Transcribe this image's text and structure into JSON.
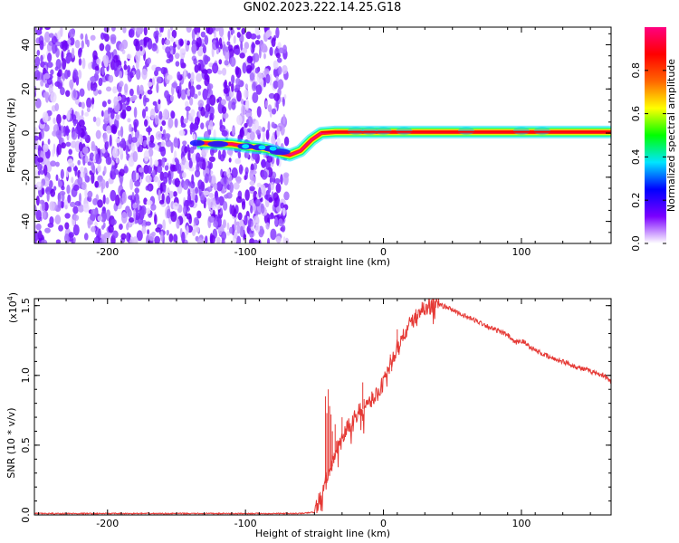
{
  "title": "GN02.2023.222.14.25.G18",
  "chart_data": [
    {
      "type": "heatmap",
      "xlabel": "Height of straight line (km)",
      "ylabel": "Frequency (Hz)",
      "xlim": [
        -253,
        165
      ],
      "ylim": [
        -50,
        48
      ],
      "xticks": [
        -200,
        -100,
        0,
        100
      ],
      "xtick_labels": [
        "-200",
        "-100",
        "0",
        "100"
      ],
      "yticks": [
        -40,
        -20,
        0,
        20,
        40
      ],
      "ytick_labels": [
        "-40",
        "-20",
        "0",
        "20",
        "40"
      ],
      "colorbar": {
        "label": "Normalized spectral amplitude",
        "range": [
          0.0,
          1.0
        ],
        "ticks": [
          0.0,
          0.2,
          0.4,
          0.6,
          0.8
        ],
        "tick_labels": [
          "0.0",
          "0.2",
          "0.4",
          "0.6",
          "0.8"
        ],
        "colors": [
          "#ffffff",
          "#7b00ff",
          "#0000ff",
          "#00e5ff",
          "#00ff00",
          "#ffff00",
          "#ff6600",
          "#ff0000",
          "#ff0080"
        ]
      },
      "noise_region_x": [
        -253,
        -70
      ],
      "ridge": [
        {
          "x": -135,
          "y": -4.5
        },
        {
          "x": -110,
          "y": -5
        },
        {
          "x": -100,
          "y": -6
        },
        {
          "x": -85,
          "y": -7
        },
        {
          "x": -75,
          "y": -9
        },
        {
          "x": -68,
          "y": -10
        },
        {
          "x": -60,
          "y": -8
        },
        {
          "x": -52,
          "y": -3
        },
        {
          "x": -45,
          "y": 0
        },
        {
          "x": -35,
          "y": 0.5
        },
        {
          "x": 0,
          "y": 0.5
        },
        {
          "x": 60,
          "y": 0.5
        },
        {
          "x": 100,
          "y": 0.5
        },
        {
          "x": 165,
          "y": 0.5
        }
      ],
      "grid": false
    },
    {
      "type": "line",
      "xlabel": "Height of straight line (km)",
      "ylabel": "SNR (10 * v/v)",
      "y_multiplier_label": "(x10",
      "y_multiplier_exp": "4",
      "xlim": [
        -253,
        165
      ],
      "ylim": [
        0,
        1.55
      ],
      "xticks": [
        -200,
        -100,
        0,
        100
      ],
      "xtick_labels": [
        "-200",
        "-100",
        "0",
        "100"
      ],
      "yticks": [
        0.0,
        0.5,
        1.0,
        1.5
      ],
      "ytick_labels": [
        "0.0",
        "0.5",
        "1.0",
        "1.5"
      ],
      "color": "#e53935",
      "series_envelope": {
        "x": [
          -253,
          -60,
          -50,
          -45,
          -40,
          -35,
          -30,
          -20,
          -10,
          0,
          10,
          20,
          30,
          40,
          50,
          60,
          70,
          80,
          90,
          95,
          100,
          110,
          120,
          130,
          140,
          150,
          160,
          165
        ],
        "y": [
          0.01,
          0.01,
          0.02,
          0.15,
          0.28,
          0.45,
          0.55,
          0.72,
          0.8,
          0.95,
          1.2,
          1.38,
          1.49,
          1.51,
          1.47,
          1.42,
          1.38,
          1.33,
          1.29,
          1.23,
          1.25,
          1.18,
          1.13,
          1.1,
          1.06,
          1.03,
          1.0,
          0.95
        ]
      },
      "spikes": [
        {
          "x": -42,
          "y": 0.85
        },
        {
          "x": -40,
          "y": 0.9
        },
        {
          "x": -38,
          "y": 0.72
        },
        {
          "x": -35,
          "y": 0.65
        },
        {
          "x": -30,
          "y": 0.7
        },
        {
          "x": -15,
          "y": 0.95
        },
        {
          "x": 5,
          "y": 1.15
        },
        {
          "x": 10,
          "y": 1.33
        }
      ],
      "grid": false
    }
  ]
}
